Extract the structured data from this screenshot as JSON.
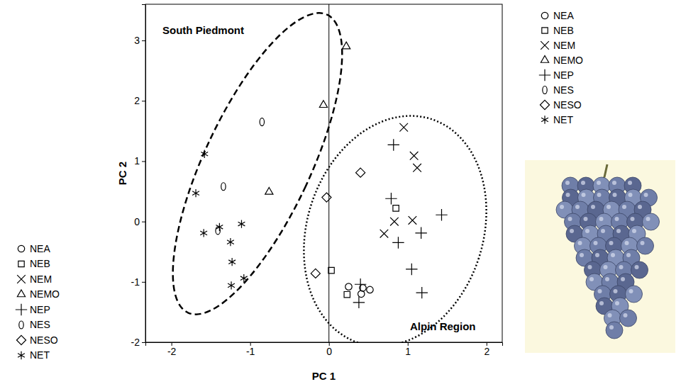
{
  "chart_data": {
    "type": "scatter",
    "x_label": "PC 1",
    "y_label": "PC 2",
    "annotations": [
      "South Piedmont",
      "Alpin Region"
    ],
    "xlim": [
      -2.33,
      2.2
    ],
    "xticks": [
      -2,
      -1,
      0,
      1,
      2
    ],
    "ylim": [
      -2,
      3.6
    ],
    "yticks": [
      -2,
      -1,
      0,
      1,
      2,
      3
    ],
    "color": "#000000",
    "legend": "right",
    "series": [
      {
        "name": "NEA",
        "marker": "circle",
        "x": [
          0.25,
          0.43,
          0.41,
          0.52
        ],
        "values": [
          -1.08,
          -1.1,
          -1.2,
          -1.13
        ]
      },
      {
        "name": "NEB",
        "marker": "square",
        "x": [
          0.85,
          0.03,
          0.23
        ],
        "values": [
          0.22,
          -0.81,
          -1.21
        ]
      },
      {
        "name": "NEM",
        "marker": "x",
        "x": [
          0.95,
          1.08,
          1.12,
          0.83,
          1.06,
          0.7
        ],
        "values": [
          1.56,
          1.09,
          0.89,
          0.0,
          0.02,
          -0.2
        ]
      },
      {
        "name": "NEMO",
        "marker": "triangle",
        "x": [
          0.22,
          -0.07,
          -0.76
        ],
        "values": [
          2.9,
          1.93,
          0.49
        ]
      },
      {
        "name": "NEP",
        "marker": "plus",
        "x": [
          0.82,
          0.79,
          0.88,
          1.17,
          1.43,
          1.05,
          1.18,
          0.4,
          0.38
        ],
        "values": [
          1.27,
          0.38,
          -0.35,
          -0.19,
          0.11,
          -0.79,
          -1.18,
          -1.04,
          -1.34
        ]
      },
      {
        "name": "NES",
        "marker": "ellipse",
        "x": [
          -0.85,
          -1.34,
          -1.41
        ],
        "values": [
          1.65,
          0.58,
          -0.15
        ]
      },
      {
        "name": "NESO",
        "marker": "diamond",
        "x": [
          0.4,
          -0.03,
          -0.17
        ],
        "values": [
          0.81,
          0.4,
          -0.86
        ]
      },
      {
        "name": "NET",
        "marker": "star",
        "x": [
          -1.58,
          -1.69,
          -1.59,
          -1.39,
          -1.11,
          -1.25,
          -1.23,
          -1.24,
          -1.08
        ],
        "values": [
          1.12,
          0.47,
          -0.19,
          -0.09,
          -0.04,
          -0.34,
          -0.67,
          -1.06,
          -0.94
        ]
      }
    ]
  }
}
